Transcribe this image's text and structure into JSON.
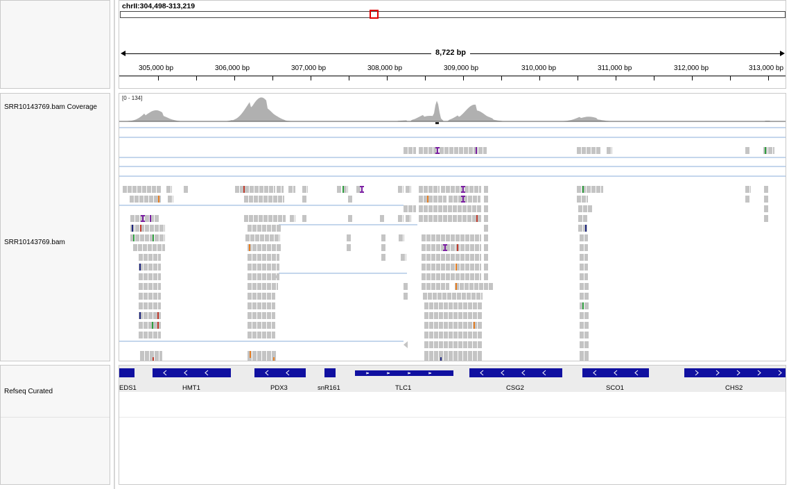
{
  "locus": "chrII:304,498-313,219",
  "span_label": "8,722 bp",
  "ruler_labels": [
    "305,000 bp",
    "306,000 bp",
    "307,000 bp",
    "308,000 bp",
    "309,000 bp",
    "310,000 bp",
    "311,000 bp",
    "312,000 bp",
    "313,000 bp"
  ],
  "tracks": {
    "coverage_name": "SRR10143769.bam Coverage",
    "coverage_range": "[0 - 134]",
    "alignment_name": "SRR10143769.bam",
    "refseq_name": "Refseq Curated"
  },
  "genes": [
    "EDS1",
    "HMT1",
    "PDX3",
    "snR161",
    "TLC1",
    "CSG2",
    "SCO1",
    "CHS2"
  ],
  "colors": {
    "read": "#c4c4c4",
    "coverage": "#b0b0b0",
    "gene": "#1010a0",
    "split_line": "#8aaed8",
    "insertion": "#7b1fa2",
    "ideogram_box": "#e00000"
  }
}
